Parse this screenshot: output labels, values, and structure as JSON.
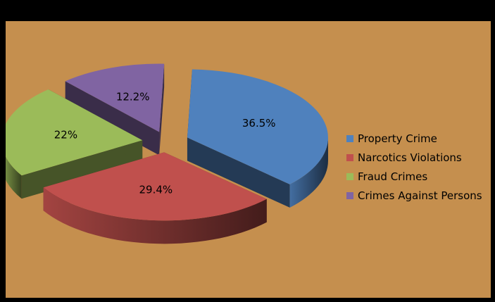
{
  "chart_data": {
    "type": "pie",
    "style": "3d-exploded",
    "categories": [
      "Property Crime",
      "Narcotics Violations",
      "Fraud Crimes",
      "Crimes Against Persons"
    ],
    "values": [
      36.5,
      29.4,
      22,
      12.2
    ],
    "labels": [
      "36.5%",
      "29.4%",
      "22%",
      "12.2%"
    ],
    "colors": [
      "#4F81BD",
      "#C0504D",
      "#9BBB59",
      "#8064A2"
    ],
    "legend_position": "right"
  },
  "background": {
    "frame": "#000000",
    "plot": "#C58F4E"
  }
}
